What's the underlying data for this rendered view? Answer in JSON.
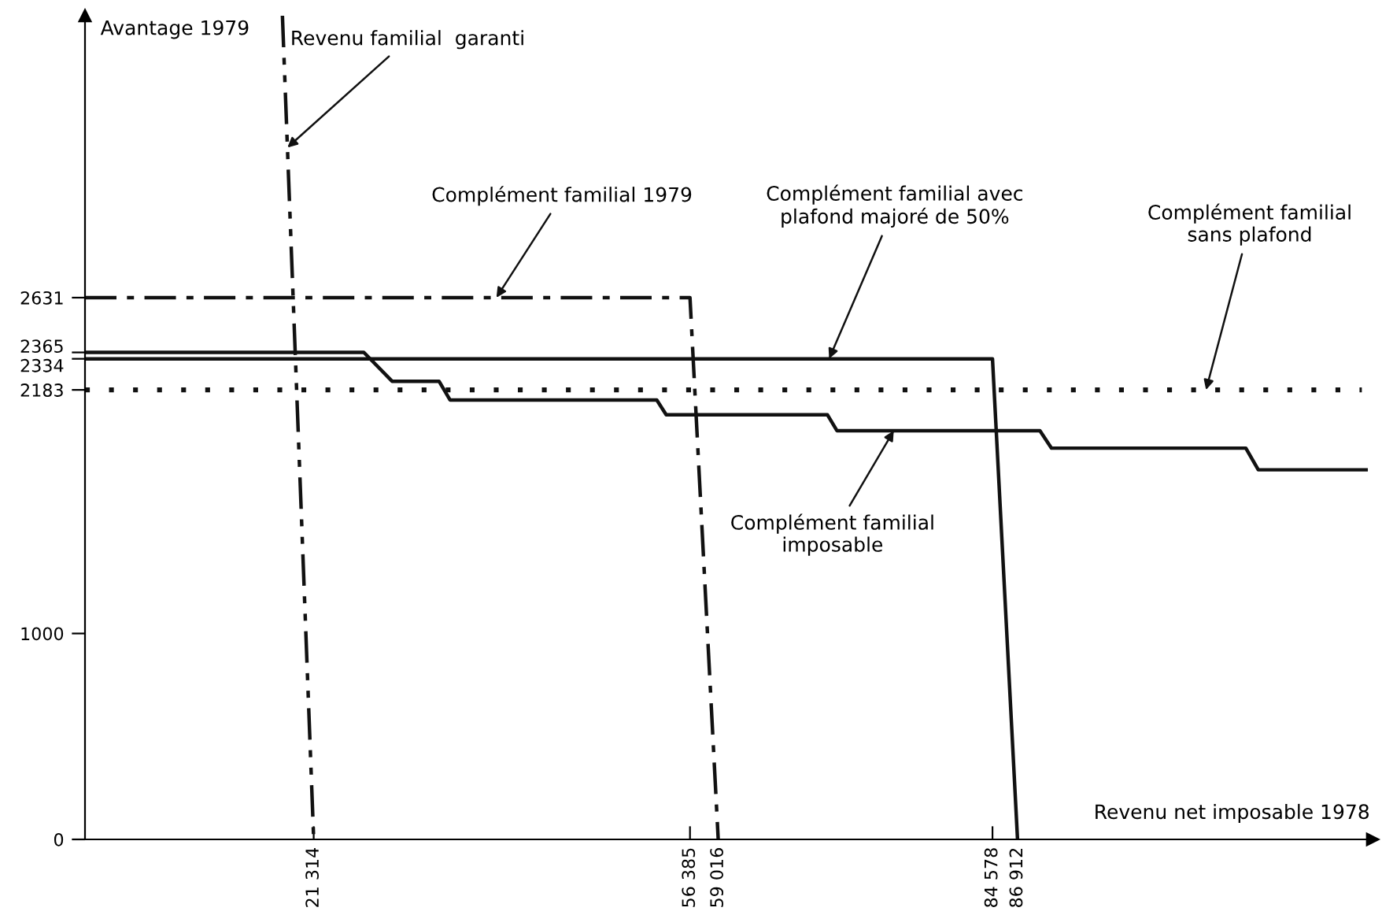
{
  "chart_data": {
    "type": "line",
    "xlabel": "Revenu net imposable 1978",
    "ylabel": "Avantage 1979",
    "xlim": [
      0,
      120000
    ],
    "ylim": [
      0,
      4000
    ],
    "xticks": [
      {
        "value": 21314,
        "label": "21 314"
      },
      {
        "value": 56385,
        "label": "56 385"
      },
      {
        "value": 59016,
        "label": "59 016"
      },
      {
        "value": 84578,
        "label": "84 578"
      },
      {
        "value": 86912,
        "label": "86 912"
      }
    ],
    "yticks": [
      0,
      1000,
      2183,
      2334,
      2365,
      2631
    ],
    "grid": false,
    "legend": false,
    "marker": "none",
    "series": [
      {
        "name": "Revenu familial  garanti",
        "color": "#111111",
        "line_style": "dashdotdot",
        "x": [
          18400,
          21314
        ],
        "values": [
          4000,
          0
        ]
      },
      {
        "name": "Complément familial 1979",
        "color": "#111111",
        "line_style": "dashdot",
        "x": [
          0,
          56385,
          59016
        ],
        "values": [
          2631,
          2631,
          0
        ]
      },
      {
        "name": "Complément familial avec\nplafond majoré de 50%",
        "color": "#111111",
        "line_style": "solid",
        "x": [
          0,
          84578,
          86912
        ],
        "values": [
          2334,
          2334,
          0
        ]
      },
      {
        "name": "Complément familial\nsans plafond",
        "color": "#111111",
        "line_style": "dotted",
        "x": [
          0,
          119000
        ],
        "values": [
          2183,
          2183
        ]
      },
      {
        "name": "Complément familial\nimposable",
        "color": "#111111",
        "line_style": "solid",
        "x": [
          0,
          25990,
          28620,
          32996,
          34020,
          53290,
          54170,
          69200,
          70080,
          89000,
          90080,
          108190,
          109350,
          119400
        ],
        "values": [
          2365,
          2365,
          2225,
          2225,
          2134,
          2134,
          2062,
          2062,
          1985,
          1985,
          1900,
          1900,
          1795,
          1795
        ]
      }
    ]
  }
}
